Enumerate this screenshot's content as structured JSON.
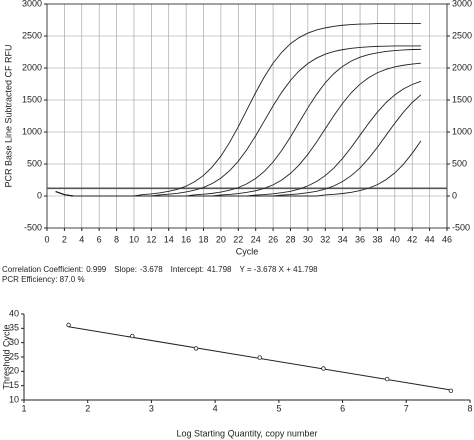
{
  "chart_data": [
    {
      "type": "line",
      "xlabel": "Cycle",
      "ylabel": "PCR Base Line Subtracted CF RFU",
      "x": [
        1,
        2,
        3,
        4,
        5,
        6,
        7,
        8,
        9,
        10,
        11,
        12,
        13,
        14,
        15,
        16,
        17,
        18,
        19,
        20,
        21,
        22,
        23,
        24,
        25,
        26,
        27,
        28,
        29,
        30,
        31,
        32,
        33,
        34,
        35,
        36,
        37,
        38,
        39,
        40,
        41,
        42,
        43
      ],
      "series": [
        {
          "color": "#222222",
          "values": [
            70,
            20,
            0,
            0,
            0,
            0,
            0,
            0,
            0,
            0,
            22,
            32,
            49,
            73,
            105,
            154,
            224,
            321,
            454,
            624,
            837,
            1083,
            1350,
            1617,
            1863,
            2076,
            2246,
            2379,
            2476,
            2546,
            2595,
            2627,
            2651,
            2668,
            2678,
            2687,
            2689,
            2695,
            2695,
            2695,
            2695,
            2695,
            2695
          ]
        },
        {
          "color": "#222222",
          "values": [
            70,
            20,
            0,
            0,
            0,
            0,
            0,
            0,
            0,
            0,
            0,
            0,
            19,
            28,
            42,
            63,
            92,
            134,
            195,
            280,
            395,
            543,
            729,
            942,
            1175,
            1408,
            1622,
            1807,
            1955,
            2070,
            2155,
            2216,
            2258,
            2287,
            2308,
            2322,
            2331,
            2338,
            2341,
            2345,
            2345,
            2345,
            2345
          ]
        },
        {
          "color": "#222222",
          "values": [
            70,
            20,
            0,
            0,
            0,
            0,
            0,
            0,
            0,
            0,
            0,
            0,
            0,
            0,
            0,
            0,
            18,
            28,
            41,
            62,
            90,
            131,
            191,
            274,
            386,
            531,
            713,
            922,
            1150,
            1378,
            1587,
            1769,
            1914,
            2026,
            2109,
            2169,
            2210,
            2238,
            2259,
            2272,
            2282,
            2289,
            2291
          ]
        },
        {
          "color": "#222222",
          "values": [
            70,
            20,
            0,
            0,
            0,
            0,
            0,
            0,
            0,
            0,
            0,
            0,
            0,
            0,
            0,
            0,
            0,
            0,
            0,
            17,
            25,
            38,
            57,
            82,
            120,
            174,
            250,
            353,
            485,
            651,
            842,
            1050,
            1258,
            1449,
            1615,
            1747,
            1850,
            1926,
            1980,
            2018,
            2043,
            2062,
            2075
          ]
        },
        {
          "color": "#222222",
          "values": [
            70,
            20,
            0,
            0,
            0,
            0,
            0,
            0,
            0,
            0,
            0,
            0,
            0,
            0,
            0,
            0,
            0,
            0,
            0,
            0,
            0,
            0,
            0,
            15,
            23,
            34,
            51,
            74,
            108,
            158,
            226,
            319,
            439,
            589,
            762,
            950,
            1138,
            1311,
            1461,
            1581,
            1674,
            1742,
            1792
          ]
        },
        {
          "color": "#222222",
          "values": [
            70,
            20,
            0,
            0,
            0,
            0,
            0,
            0,
            0,
            0,
            0,
            0,
            0,
            0,
            0,
            0,
            0,
            0,
            0,
            0,
            0,
            0,
            0,
            0,
            0,
            0,
            15,
            23,
            34,
            51,
            74,
            108,
            158,
            226,
            319,
            439,
            589,
            762,
            950,
            1138,
            1311,
            1461,
            1581
          ]
        },
        {
          "color": "#222222",
          "values": [
            70,
            20,
            0,
            0,
            0,
            0,
            0,
            0,
            0,
            0,
            0,
            0,
            0,
            0,
            0,
            0,
            0,
            0,
            0,
            0,
            0,
            0,
            0,
            0,
            0,
            0,
            0,
            0,
            0,
            0,
            0,
            17,
            26,
            39,
            58,
            84,
            123,
            178,
            256,
            361,
            497,
            667,
            862
          ]
        }
      ],
      "xlim": [
        0,
        46
      ],
      "xticks": [
        0,
        2,
        4,
        6,
        8,
        10,
        12,
        14,
        16,
        18,
        20,
        22,
        24,
        26,
        28,
        30,
        32,
        34,
        36,
        38,
        40,
        42,
        44,
        46
      ],
      "ylim": [
        -500,
        3000
      ],
      "yticks": [
        -500,
        0,
        500,
        1000,
        1500,
        2000,
        2500,
        3000
      ],
      "y2lim": [
        -500,
        3000
      ],
      "y2ticks": [
        -500,
        0,
        500,
        1000,
        1500,
        2000,
        2500,
        3000
      ],
      "threshold": 120,
      "threshold_color": "#555555",
      "grid": true
    },
    {
      "type": "scatter",
      "xlabel": "Log Starting Quantity, copy number",
      "ylabel": "Threshold Cycle",
      "stats": [
        {
          "label": "Correlation Coefficient:",
          "value": 0.999
        },
        {
          "label": "Slope:",
          "value": -3.678
        },
        {
          "label": "Intercept:",
          "value": 41.798
        }
      ],
      "equation": "Y = -3.678 X + 41.798",
      "efficiency": "PCR Efficiency: 87.0 %",
      "x": [
        1.7,
        2.7,
        3.7,
        4.7,
        5.7,
        6.7,
        7.7
      ],
      "values": [
        36.2,
        32.3,
        28.0,
        24.8,
        21.0,
        17.3,
        13.2
      ],
      "color": "#222222",
      "xlim": [
        1,
        8
      ],
      "xticks": [
        1,
        2,
        3,
        4,
        5,
        6,
        7,
        8
      ],
      "ylim": [
        10,
        40
      ],
      "yticks": [
        10,
        15,
        20,
        25,
        30,
        35,
        40
      ],
      "grid": false
    }
  ]
}
